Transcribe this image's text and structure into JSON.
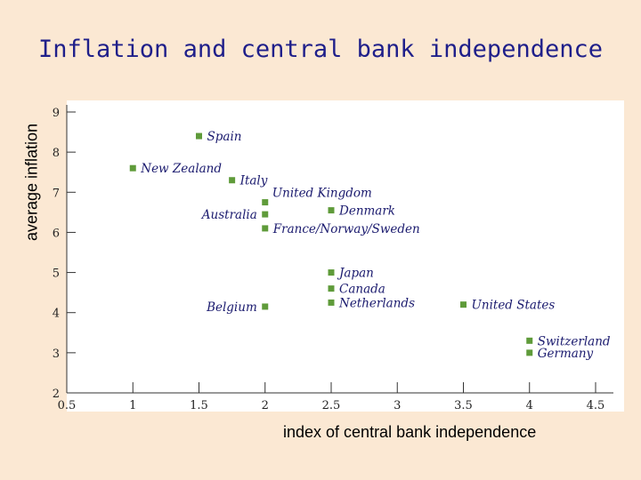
{
  "chart_data": {
    "type": "scatter",
    "title": "Inflation and central bank independence",
    "xlabel": "index of central bank independence",
    "ylabel": "average inflation",
    "xlim": [
      0.5,
      4.5
    ],
    "ylim": [
      2,
      9
    ],
    "x_ticks": [
      "0.5",
      "1",
      "1.5",
      "2",
      "2.5",
      "3",
      "3.5",
      "4",
      "4.5"
    ],
    "y_ticks": [
      "2",
      "3",
      "4",
      "5",
      "6",
      "7",
      "8",
      "9"
    ],
    "marker_color": "#5f9b3a",
    "points": [
      {
        "label": "Spain",
        "x": 1.5,
        "y": 8.4,
        "label_side": "right"
      },
      {
        "label": "New Zealand",
        "x": 1.0,
        "y": 7.6,
        "label_side": "right"
      },
      {
        "label": "Italy",
        "x": 1.75,
        "y": 7.3,
        "label_side": "right"
      },
      {
        "label": "United Kingdom",
        "x": 2.0,
        "y": 6.75,
        "label_side": "right-up"
      },
      {
        "label": "Australia",
        "x": 2.0,
        "y": 6.45,
        "label_side": "left"
      },
      {
        "label": "France/Norway/Sweden",
        "x": 2.0,
        "y": 6.1,
        "label_side": "right"
      },
      {
        "label": "Denmark",
        "x": 2.5,
        "y": 6.55,
        "label_side": "right"
      },
      {
        "label": "Japan",
        "x": 2.5,
        "y": 5.0,
        "label_side": "right"
      },
      {
        "label": "Canada",
        "x": 2.5,
        "y": 4.6,
        "label_side": "right"
      },
      {
        "label": "Netherlands",
        "x": 2.5,
        "y": 4.25,
        "label_side": "right"
      },
      {
        "label": "Belgium",
        "x": 2.0,
        "y": 4.15,
        "label_side": "left"
      },
      {
        "label": "United States",
        "x": 3.5,
        "y": 4.2,
        "label_side": "right"
      },
      {
        "label": "Switzerland",
        "x": 4.0,
        "y": 3.3,
        "label_side": "right"
      },
      {
        "label": "Germany",
        "x": 4.0,
        "y": 3.0,
        "label_side": "right"
      }
    ]
  }
}
